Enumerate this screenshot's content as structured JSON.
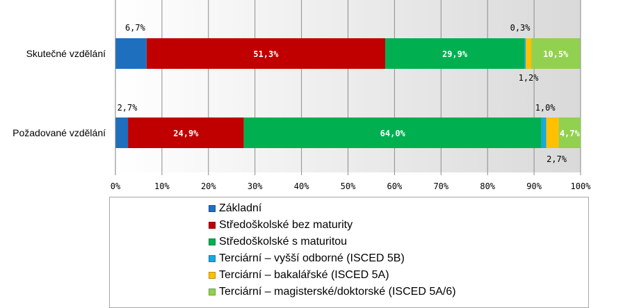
{
  "chart_data": {
    "type": "bar",
    "orientation": "horizontal",
    "stacked": true,
    "categories": [
      "Skutečné vzdělání",
      "Požadované vzdělání"
    ],
    "series": [
      {
        "name": "Základní",
        "color": "#1f6fbf",
        "values": [
          6.7,
          2.7
        ],
        "labels": [
          "6,7%",
          "2,7%"
        ]
      },
      {
        "name": "Středoškolské bez maturity",
        "color": "#c00000",
        "values": [
          51.3,
          24.9
        ],
        "labels": [
          "51,3%",
          "24,9%"
        ]
      },
      {
        "name": "Středoškolské s maturitou",
        "color": "#00b050",
        "values": [
          29.9,
          64.0
        ],
        "labels": [
          "29,9%",
          "64,0%"
        ]
      },
      {
        "name": "Terciární – vyšší odborné (ISCED 5B)",
        "color": "#1aa7df",
        "values": [
          0.3,
          1.0
        ],
        "labels": [
          "0,3%",
          "1,0%"
        ]
      },
      {
        "name": "Terciární – bakalářské (ISCED 5A)",
        "color": "#ffc000",
        "values": [
          1.2,
          2.7
        ],
        "labels": [
          "1,2%",
          "2,7%"
        ]
      },
      {
        "name": "Terciární – magisterské/doktorské (ISCED 5A/6)",
        "color": "#92d050",
        "values": [
          10.5,
          4.7
        ],
        "labels": [
          "10,5%",
          "4,7%"
        ]
      }
    ],
    "xlim": [
      0,
      100
    ],
    "x_ticks": [
      "0%",
      "10%",
      "20%",
      "30%",
      "40%",
      "50%",
      "60%",
      "70%",
      "80%",
      "90%",
      "100%"
    ],
    "grid": true,
    "legend_position": "bottom"
  }
}
